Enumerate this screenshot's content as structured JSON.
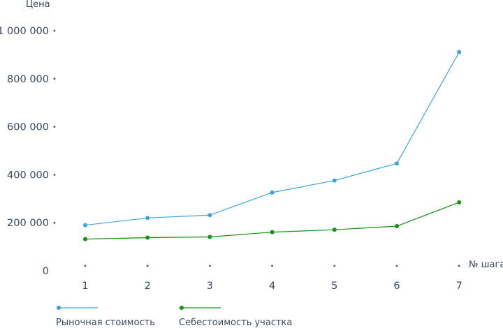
{
  "chart_data": {
    "type": "line",
    "ylabel": "Цена",
    "xlabel": "№ шага",
    "x": [
      1,
      2,
      3,
      4,
      5,
      6,
      7
    ],
    "ylim": [
      0,
      1000000
    ],
    "yticks": [
      0,
      200000,
      400000,
      600000,
      800000,
      1000000
    ],
    "ytick_labels": [
      "0",
      "200 000",
      "400 000",
      "600 000",
      "800 000",
      "1 000 000"
    ],
    "grid": false,
    "legend_position": "bottom",
    "series": [
      {
        "name": "Рыночная стоимость",
        "color": "#3aa6d8",
        "values": [
          190000,
          220000,
          232000,
          326000,
          376000,
          447000,
          911000
        ]
      },
      {
        "name": "Себестоимость участка",
        "color": "#14920f",
        "values": [
          132000,
          138000,
          141000,
          161000,
          171000,
          186000,
          285000
        ]
      }
    ]
  }
}
